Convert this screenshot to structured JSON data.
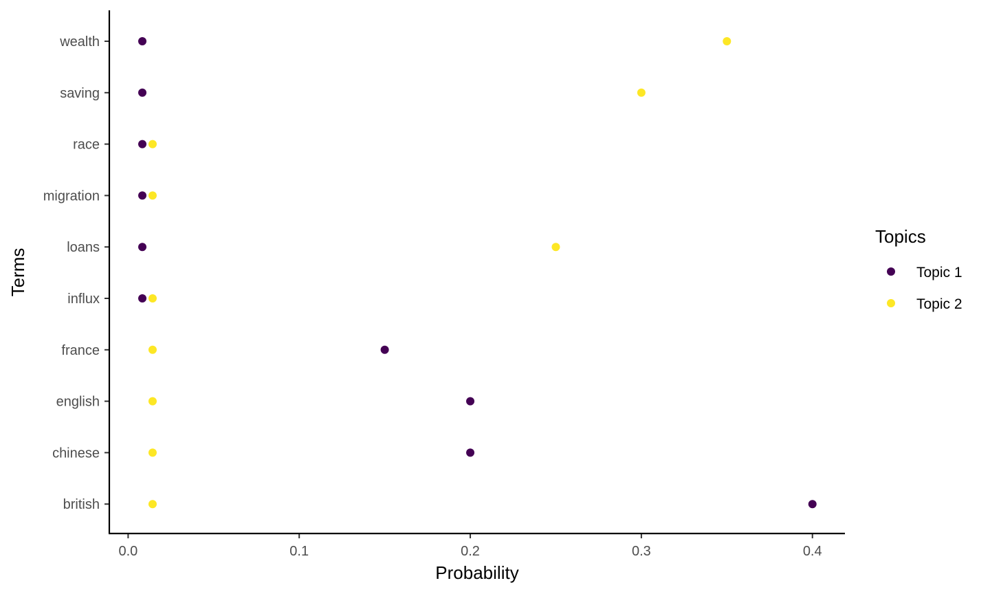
{
  "chart_data": {
    "type": "scatter",
    "title": "",
    "xlabel": "Probability",
    "ylabel": "Terms",
    "xlim": [
      -0.011,
      0.419
    ],
    "x_ticks": [
      0.0,
      0.1,
      0.2,
      0.3,
      0.4
    ],
    "x_tick_labels": [
      "0.0",
      "0.1",
      "0.2",
      "0.3",
      "0.4"
    ],
    "categories": [
      "wealth",
      "saving",
      "race",
      "migration",
      "loans",
      "influx",
      "france",
      "english",
      "chinese",
      "british"
    ],
    "grid": false,
    "legend": {
      "title": "Topics",
      "position": "right"
    },
    "series": [
      {
        "name": "Topic 1",
        "color": "#440154",
        "values": [
          0.0083,
          0.0083,
          0.0083,
          0.0083,
          0.0083,
          0.0083,
          0.15,
          0.2,
          0.2,
          0.4
        ]
      },
      {
        "name": "Topic 2",
        "color": "#fde725",
        "values": [
          0.35,
          0.3,
          0.0143,
          0.0143,
          0.25,
          0.0143,
          0.0143,
          0.0143,
          0.0143,
          0.0143
        ]
      }
    ]
  }
}
